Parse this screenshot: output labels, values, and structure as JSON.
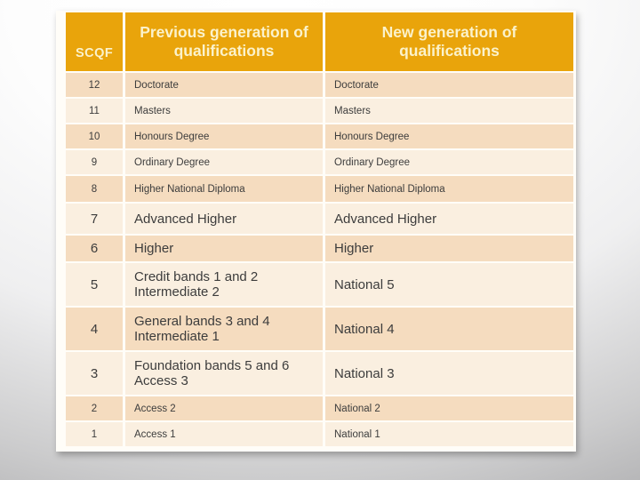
{
  "slide": {
    "type": "presentation-table-slide",
    "colors": {
      "header_background": "#e9a40b",
      "header_text": "#fbf2cb",
      "row_dark": "#f5dcbf",
      "row_light": "#faefe0",
      "body_text": "#3c3c3c",
      "table_edge": "#fffdf8",
      "background_top": "#ffffff",
      "background_bottom": "#929294"
    }
  },
  "table": {
    "header": {
      "scqf": "SCQF",
      "previous": "Previous generation of qualifications",
      "new": "New generation of qualifications"
    },
    "rows": [
      {
        "level": "12",
        "prev": "Doctorate",
        "new": "Doctorate"
      },
      {
        "level": "11",
        "prev": "Masters",
        "new": "Masters"
      },
      {
        "level": "10",
        "prev": "Honours Degree",
        "new": "Honours Degree"
      },
      {
        "level": "9",
        "prev": "Ordinary Degree",
        "new": "Ordinary Degree"
      },
      {
        "level": "8",
        "prev": "Higher National Diploma",
        "new": "Higher National Diploma"
      },
      {
        "level": "7",
        "prev": "Advanced Higher",
        "new": "Advanced Higher"
      },
      {
        "level": "6",
        "prev": "Higher",
        "new": "Higher"
      },
      {
        "level": "5",
        "prev": "Credit bands 1 and 2\nIntermediate 2",
        "new": "National 5"
      },
      {
        "level": "4",
        "prev": "General bands 3 and 4\nIntermediate 1",
        "new": "National 4"
      },
      {
        "level": "3",
        "prev": "Foundation bands 5 and 6\nAccess 3",
        "new": "National 3"
      },
      {
        "level": "2",
        "prev": "Access 2",
        "new": "National 2"
      },
      {
        "level": "1",
        "prev": "Access 1",
        "new": "National 1"
      }
    ]
  }
}
